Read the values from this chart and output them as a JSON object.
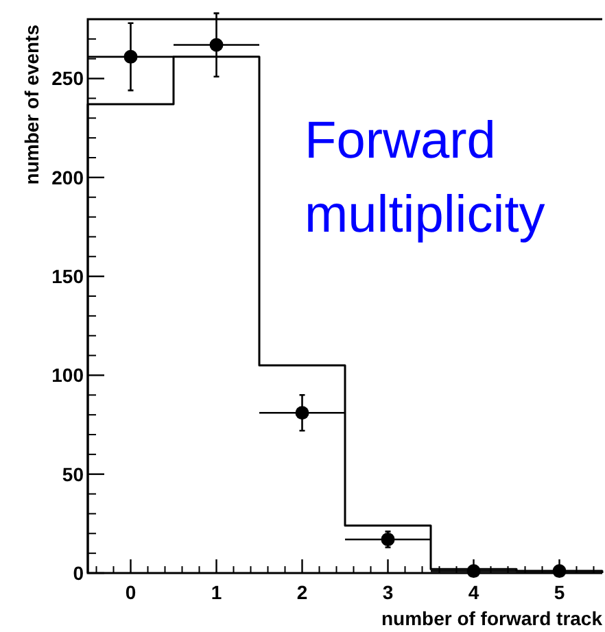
{
  "chart_data": {
    "type": "histogram",
    "xlabel": "number of forward track",
    "ylabel": "number of events",
    "annotations": [
      "Forward multiplicity"
    ],
    "bins": [
      -0.5,
      0.5,
      1.5,
      2.5,
      3.5,
      4.5,
      5.5
    ],
    "values": [
      237,
      261,
      105,
      24,
      2,
      1
    ],
    "color": "#000000",
    "series": [
      {
        "type": "scatter",
        "x": [
          0,
          1,
          2,
          3,
          4,
          5
        ],
        "values": [
          261,
          267,
          81,
          17,
          1,
          1
        ],
        "errors": [
          17,
          16,
          9,
          4,
          null,
          null
        ],
        "xerrors": [
          0.5,
          0.5,
          0.5,
          0.5,
          0.5,
          0.5
        ],
        "color": "#000000"
      }
    ],
    "xlim": [
      -0.5,
      5.5
    ],
    "ylim": [
      0,
      280
    ],
    "xticks": [
      0,
      1,
      2,
      3,
      4,
      5
    ],
    "yticks": [
      0,
      50,
      100,
      150,
      200,
      250
    ],
    "marker": "circle"
  }
}
